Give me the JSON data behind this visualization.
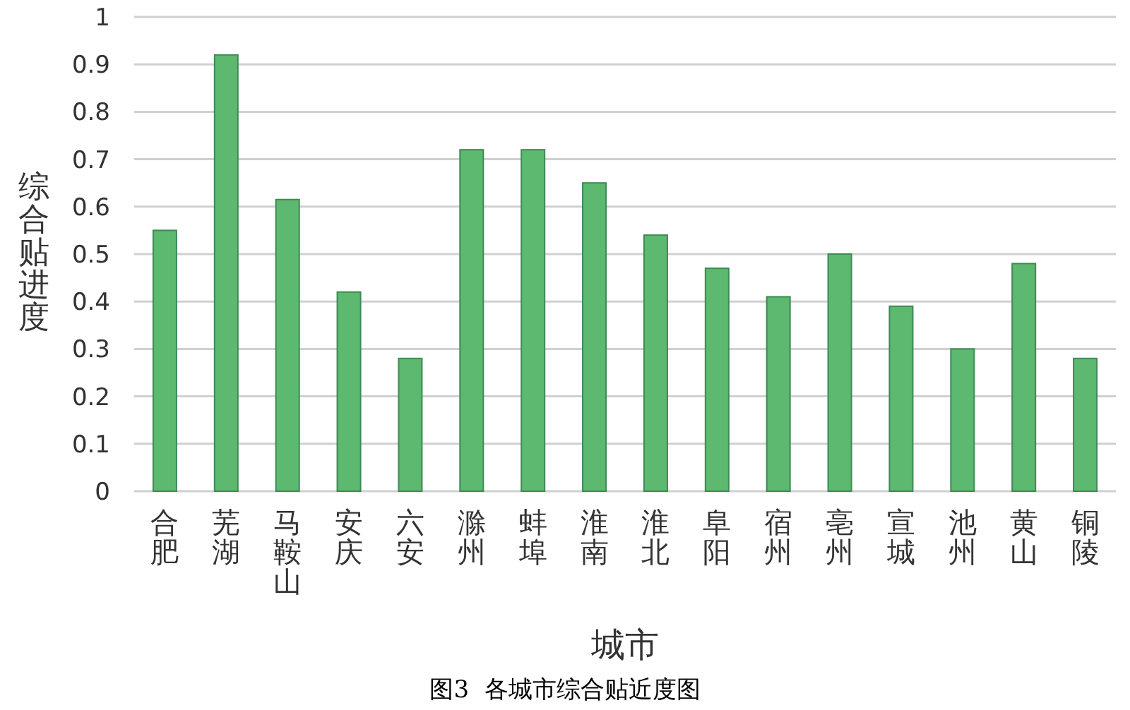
{
  "chart_data": {
    "type": "bar",
    "xlabel": "城市",
    "ylabel": "综合贴进度",
    "categories": [
      "合肥",
      "芜湖",
      "马鞍山",
      "安庆",
      "六安",
      "滁州",
      "蚌埠",
      "淮南",
      "淮北",
      "阜阳",
      "宿州",
      "亳州",
      "宣城",
      "池州",
      "黄山",
      "铜陵"
    ],
    "values": [
      0.55,
      0.92,
      0.615,
      0.42,
      0.28,
      0.72,
      0.72,
      0.65,
      0.54,
      0.47,
      0.41,
      0.5,
      0.39,
      0.3,
      0.48,
      0.28
    ],
    "color": "#5cb96f",
    "ylim": [
      0,
      1
    ],
    "yticks": [
      0,
      0.1,
      0.2,
      0.3,
      0.4,
      0.5,
      0.6,
      0.7,
      0.8,
      0.9,
      1
    ],
    "grid": "y",
    "annotations": [
      "图3  各城市综合贴近度图"
    ]
  }
}
